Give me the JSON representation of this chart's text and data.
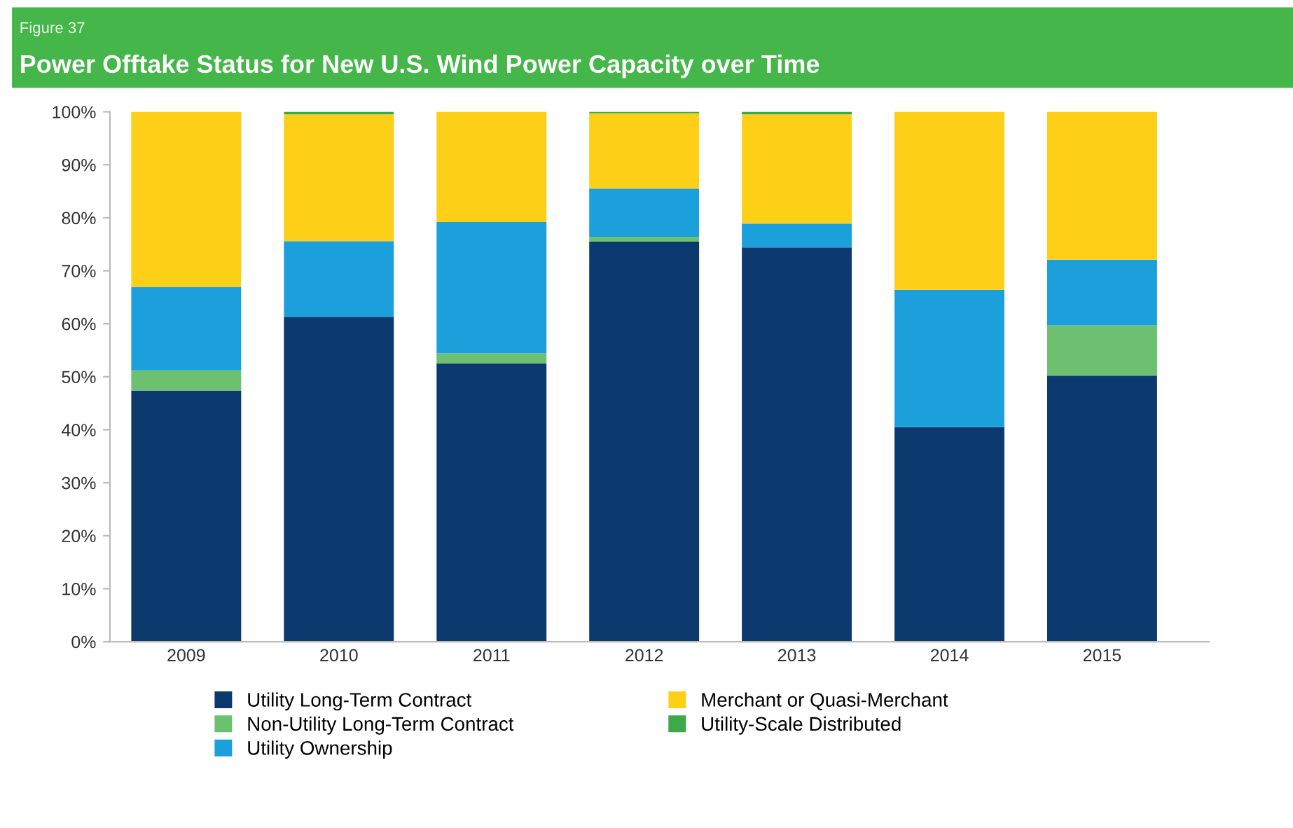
{
  "chart_data": {
    "type": "bar",
    "stacked": true,
    "title": "Power Offtake Status for New U.S. Wind Power Capacity over Time",
    "annotations": [
      "Figure 37"
    ],
    "categories": [
      "2009",
      "2010",
      "2011",
      "2012",
      "2013",
      "2014",
      "2015"
    ],
    "series": [
      {
        "name": "Utility Long-Term Contract",
        "color": "#0d3a6e",
        "values": [
          47.4,
          61.3,
          52.5,
          75.5,
          74.4,
          40.5,
          50.2
        ]
      },
      {
        "name": "Non-Utility Long-Term Contract",
        "color": "#6cc070",
        "values": [
          3.8,
          0,
          1.9,
          0.9,
          0,
          0,
          9.5
        ]
      },
      {
        "name": "Utility Ownership",
        "color": "#1ba0dc",
        "values": [
          15.7,
          14.3,
          24.8,
          9.1,
          4.5,
          25.9,
          12.4
        ]
      },
      {
        "name": "Merchant or Quasi-Merchant",
        "color": "#fdd017",
        "values": [
          33.1,
          23.9,
          20.8,
          14.2,
          20.6,
          33.6,
          27.9
        ]
      },
      {
        "name": "Utility-Scale Distributed",
        "color": "#3ea84a",
        "values": [
          0,
          0.5,
          0,
          0.3,
          0.5,
          0,
          0
        ]
      }
    ],
    "ylim": [
      0,
      100
    ],
    "yticks": [
      {
        "value": 0,
        "label": "0%"
      },
      {
        "value": 10,
        "label": "10%"
      },
      {
        "value": 20,
        "label": "20%"
      },
      {
        "value": 30,
        "label": "30%"
      },
      {
        "value": 40,
        "label": "40%"
      },
      {
        "value": 50,
        "label": "50%"
      },
      {
        "value": 60,
        "label": "60%"
      },
      {
        "value": 70,
        "label": "70%"
      },
      {
        "value": 80,
        "label": "80%"
      },
      {
        "value": 90,
        "label": "90%"
      },
      {
        "value": 100,
        "label": "100%"
      }
    ],
    "grid": false,
    "legend": "bottom"
  }
}
